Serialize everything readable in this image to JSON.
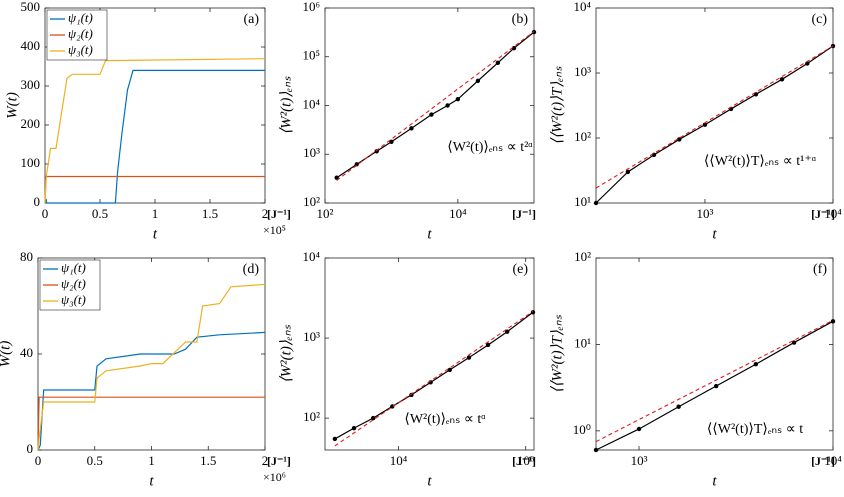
{
  "chart_data": [
    {
      "type": "step",
      "panel": "(a)",
      "xlabel": "t",
      "ylabel": "W(t)",
      "unit": "[J⁻¹]",
      "x_multiplier": "×10⁵",
      "xlim": [
        0,
        2
      ],
      "ylim": [
        0,
        500
      ],
      "xticks": [
        0,
        0.5,
        1,
        1.5,
        2
      ],
      "yticks": [
        0,
        100,
        200,
        300,
        400,
        500
      ],
      "legend": "top-left",
      "series": [
        {
          "name": "ψ₁(t)",
          "color": "#0072BD",
          "x": [
            0,
            0.01,
            0.015,
            0.64,
            0.66,
            0.7,
            0.75,
            0.8,
            2
          ],
          "values": [
            0,
            10,
            0,
            0,
            80,
            180,
            290,
            340,
            340
          ]
        },
        {
          "name": "ψ₂(t)",
          "color": "#D95319",
          "x": [
            0,
            0.01,
            2
          ],
          "values": [
            0,
            68,
            68
          ]
        },
        {
          "name": "ψ₃(t)",
          "color": "#EDB120",
          "x": [
            0,
            0.01,
            0.05,
            0.1,
            0.2,
            0.25,
            0.5,
            0.55,
            2
          ],
          "values": [
            0,
            65,
            140,
            140,
            320,
            330,
            330,
            365,
            370
          ]
        }
      ]
    },
    {
      "type": "loglog",
      "panel": "(b)",
      "xlabel": "t",
      "ylabel": "⟨W²(t)⟩ₑₙₛ",
      "unit": "[J⁻¹]",
      "annotation": "⟨W²(t)⟩ₑₙₛ ∝ t²ᵅ",
      "xlim": [
        100,
        140000
      ],
      "ylim": [
        100,
        1000000
      ],
      "xticks": [
        {
          "value": 100,
          "label": "10²"
        },
        {
          "value": 10000,
          "label": "10⁴"
        }
      ],
      "yticks": [
        {
          "value": 100,
          "label": "10²"
        },
        {
          "value": 1000,
          "label": "10³"
        },
        {
          "value": 10000,
          "label": "10⁴"
        },
        {
          "value": 100000,
          "label": "10⁵"
        },
        {
          "value": 1000000,
          "label": "10⁶"
        }
      ],
      "x": [
        150,
        300,
        600,
        1000,
        2000,
        4000,
        7000,
        10000,
        20000,
        40000,
        70000,
        140000
      ],
      "series": [
        {
          "color": "#000000",
          "style": "line-dots",
          "values": [
            330,
            620,
            1150,
            1800,
            3400,
            6500,
            10000,
            13500,
            32000,
            75000,
            150000,
            320000
          ]
        },
        {
          "color": "#e41a1c",
          "style": "dashed",
          "x": [
            150,
            140000
          ],
          "values": [
            290,
            330000
          ]
        }
      ]
    },
    {
      "type": "loglog",
      "panel": "(c)",
      "xlabel": "t",
      "ylabel": "⟨⟨W²(t)⟩T⟩ₑₙₛ",
      "unit": "[J⁻¹]",
      "annotation": "⟨⟨W²(t)⟩T⟩ₑₙₛ ∝ t¹⁺ᵅ",
      "xlim": [
        141,
        10000
      ],
      "ylim": [
        10,
        10000
      ],
      "xticks": [
        {
          "value": 1000,
          "label": "10³"
        },
        {
          "value": 10000,
          "label": "10⁴"
        }
      ],
      "yticks": [
        {
          "value": 10,
          "label": "10¹"
        },
        {
          "value": 100,
          "label": "10²"
        },
        {
          "value": 1000,
          "label": "10³"
        },
        {
          "value": 10000,
          "label": "10⁴"
        }
      ],
      "x": [
        141,
        250,
        400,
        630,
        1000,
        1600,
        2500,
        4000,
        6300,
        10000
      ],
      "series": [
        {
          "color": "#000000",
          "style": "line-dots",
          "values": [
            10,
            30,
            55,
            95,
            160,
            280,
            470,
            800,
            1400,
            2600
          ]
        },
        {
          "color": "#e41a1c",
          "style": "dashed",
          "x": [
            141,
            10000
          ],
          "values": [
            17,
            2600
          ]
        }
      ]
    },
    {
      "type": "step",
      "panel": "(d)",
      "xlabel": "t",
      "ylabel": "W(t)",
      "unit": "[J⁻¹]",
      "x_multiplier": "×10⁶",
      "xlim": [
        0,
        2
      ],
      "ylim": [
        0,
        80
      ],
      "xticks": [
        0,
        0.5,
        1,
        1.5,
        2
      ],
      "yticks": [
        0,
        40,
        80
      ],
      "legend": "top-left",
      "series": [
        {
          "name": "ψ₁(t)",
          "color": "#0072BD",
          "x": [
            0,
            0.02,
            0.05,
            0.5,
            0.52,
            0.6,
            0.9,
            1.2,
            1.3,
            1.4,
            1.6,
            2
          ],
          "values": [
            0,
            2,
            25,
            25,
            35,
            38,
            40,
            40,
            42,
            47,
            48,
            49
          ]
        },
        {
          "name": "ψ₂(t)",
          "color": "#D95319",
          "x": [
            0,
            0.01,
            2
          ],
          "values": [
            0,
            22,
            22
          ]
        },
        {
          "name": "ψ₃(t)",
          "color": "#EDB120",
          "x": [
            0,
            0.01,
            0.05,
            0.5,
            0.52,
            0.6,
            0.9,
            1.0,
            1.1,
            1.3,
            1.4,
            1.45,
            1.6,
            1.7,
            2
          ],
          "values": [
            0,
            5,
            20,
            20,
            30,
            33,
            35,
            36,
            36,
            45,
            45,
            60,
            61,
            68,
            69
          ]
        }
      ]
    },
    {
      "type": "loglog",
      "panel": "(e)",
      "xlabel": "t",
      "ylabel": "⟨W²(t)⟩ₑₙₛ",
      "unit": "[J⁻¹]",
      "annotation": "⟨W²(t)⟩ₑₙₛ ∝ tᵅ",
      "xlim": [
        700,
        1350000
      ],
      "ylim": [
        40,
        10000
      ],
      "xticks": [
        {
          "value": 10000,
          "label": "10⁴"
        },
        {
          "value": 1000000,
          "label": "10⁶"
        }
      ],
      "yticks": [
        {
          "value": 100,
          "label": "10²"
        },
        {
          "value": 1000,
          "label": "10³"
        },
        {
          "value": 10000,
          "label": "10⁴"
        }
      ],
      "x": [
        1000,
        2000,
        4000,
        8000,
        16000,
        32000,
        64000,
        128000,
        256000,
        512000,
        1300000
      ],
      "series": [
        {
          "color": "#000000",
          "style": "line-dots",
          "values": [
            55,
            75,
            100,
            140,
            195,
            280,
            400,
            570,
            820,
            1200,
            2100
          ]
        },
        {
          "color": "#e41a1c",
          "style": "dashed",
          "x": [
            1000,
            1300000
          ],
          "values": [
            45,
            2150
          ]
        }
      ]
    },
    {
      "type": "loglog",
      "panel": "(f)",
      "xlabel": "t",
      "ylabel": "⟨⟨W²(t)⟩T⟩ₑₙₛ",
      "unit": "[J⁻¹]",
      "annotation": "⟨⟨W²(t)⟩T⟩ₑₙₛ ∝ t",
      "xlim": [
        600,
        10000
      ],
      "ylim": [
        0.6,
        100
      ],
      "xticks": [
        {
          "value": 1000,
          "label": "10³"
        },
        {
          "value": 10000,
          "label": "10⁴"
        }
      ],
      "yticks": [
        {
          "value": 1,
          "label": "10⁰"
        },
        {
          "value": 10,
          "label": "10¹"
        },
        {
          "value": 100,
          "label": "10²"
        }
      ],
      "x": [
        600,
        1000,
        1600,
        2500,
        4000,
        6300,
        10000
      ],
      "series": [
        {
          "color": "#000000",
          "style": "line-dots",
          "values": [
            0.6,
            1.05,
            1.9,
            3.3,
            5.9,
            10.5,
            18.5
          ]
        },
        {
          "color": "#e41a1c",
          "style": "dashed",
          "x": [
            600,
            10000
          ],
          "values": [
            0.75,
            19
          ]
        }
      ]
    }
  ]
}
